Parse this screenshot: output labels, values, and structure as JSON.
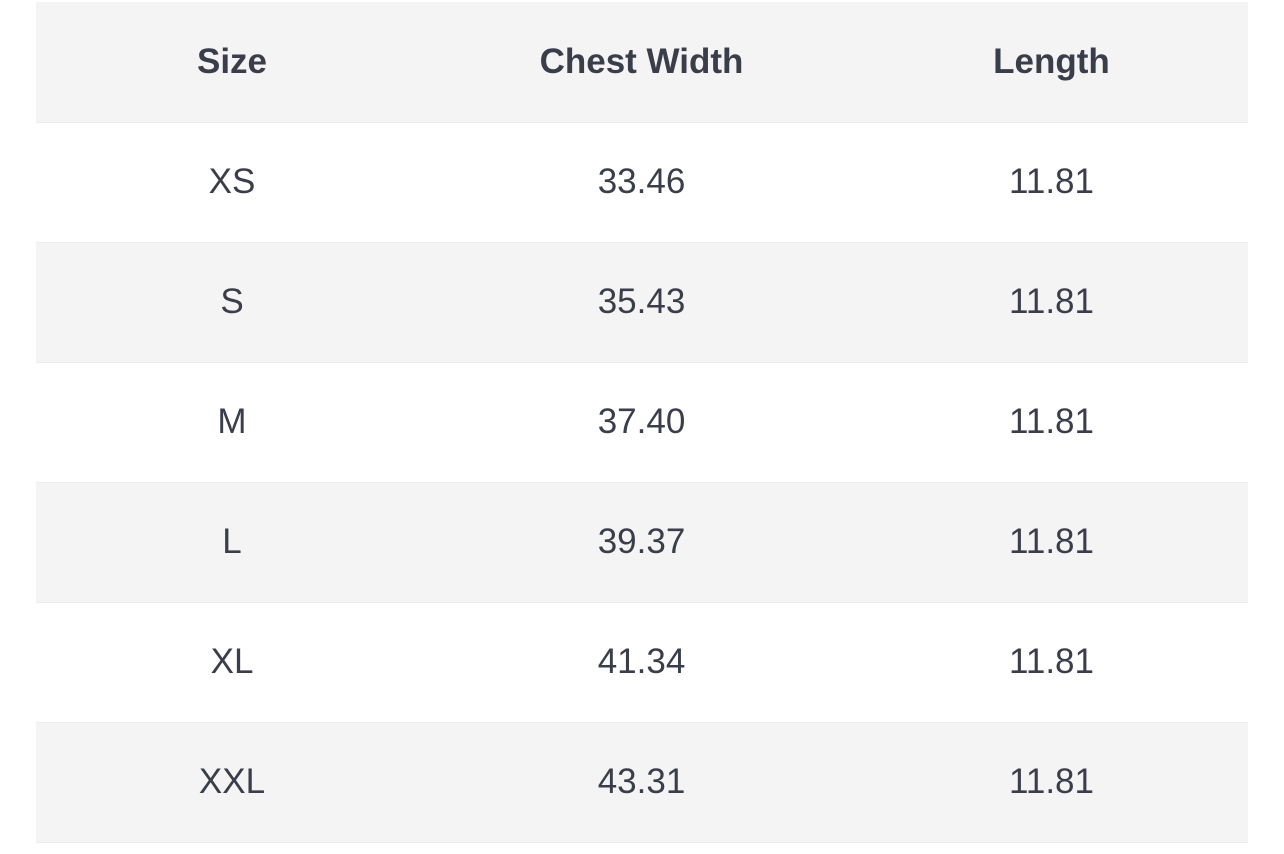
{
  "table": {
    "headers": [
      "Size",
      "Chest Width",
      "Length"
    ],
    "rows": [
      [
        "XS",
        "33.46",
        "11.81"
      ],
      [
        "S",
        "35.43",
        "11.81"
      ],
      [
        "M",
        "37.40",
        "11.81"
      ],
      [
        "L",
        "39.37",
        "11.81"
      ],
      [
        "XL",
        "41.34",
        "11.81"
      ],
      [
        "XXL",
        "43.31",
        "11.81"
      ]
    ]
  },
  "colors": {
    "text": "#3a3d4a",
    "header_bg": "#f4f4f4",
    "row_alt_bg": "#f4f4f4",
    "row_bg": "#ffffff"
  }
}
